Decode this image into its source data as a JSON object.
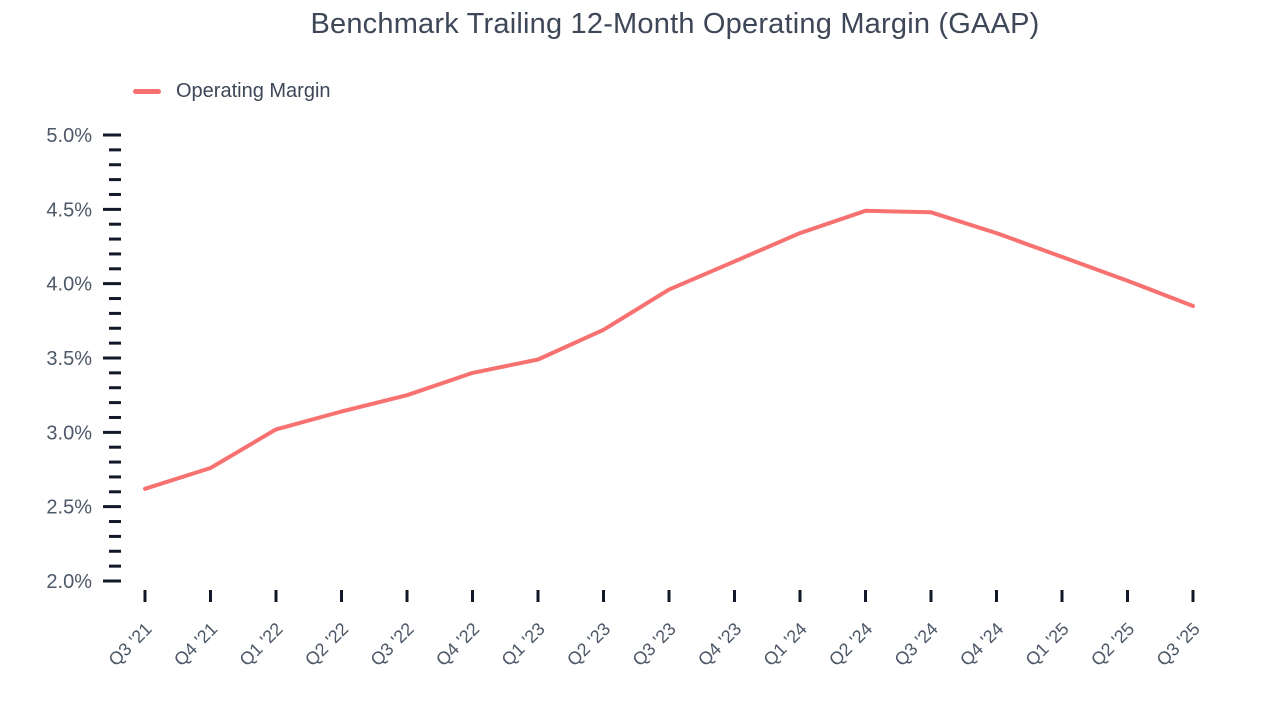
{
  "chart_data": {
    "type": "line",
    "title": "Benchmark Trailing 12-Month Operating Margin (GAAP)",
    "categories": [
      "Q3 '21",
      "Q4 '21",
      "Q1 '22",
      "Q2 '22",
      "Q3 '22",
      "Q4 '22",
      "Q1 '23",
      "Q2 '23",
      "Q3 '23",
      "Q4 '23",
      "Q1 '24",
      "Q2 '24",
      "Q3 '24",
      "Q4 '24",
      "Q1 '25",
      "Q2 '25",
      "Q3 '25"
    ],
    "series": [
      {
        "name": "Operating Margin",
        "values": [
          2.62,
          2.76,
          3.02,
          3.14,
          3.25,
          3.4,
          3.49,
          3.69,
          3.96,
          4.15,
          4.34,
          4.49,
          4.48,
          4.34,
          4.18,
          4.02,
          3.85
        ]
      }
    ],
    "xlabel": "",
    "ylabel": "",
    "ylim": [
      2.0,
      5.0
    ],
    "ytick_step": 0.5,
    "ytick_minor_step": 0.1,
    "ytick_suffix": "%",
    "ytick_decimals": 1,
    "x_label_rotation_deg": -45,
    "grid": false,
    "legend_position": "top-left",
    "colors": {
      "line": "#F87171",
      "title_text": "#3D4757",
      "axis_text": "#4D5868",
      "tick_mark": "#111827",
      "background": "#FFFFFF"
    }
  }
}
